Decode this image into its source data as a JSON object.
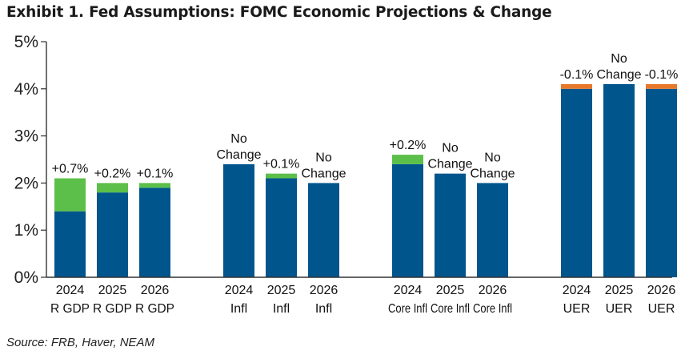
{
  "chart_data": {
    "type": "bar",
    "stacked": true,
    "title": "Exhibit 1. Fed Assumptions: FOMC Economic Projections & Change",
    "source": "Source: FRB, Haver, NEAM",
    "ylim": [
      0,
      5
    ],
    "yticks": [
      "0%",
      "1%",
      "2%",
      "3%",
      "4%",
      "5%"
    ],
    "colors": {
      "base": "#00558c",
      "increase": "#5cbf4a",
      "decrease": "#e8782a",
      "axis": "#333333"
    },
    "groups": [
      {
        "bars": [
          {
            "year": "2024",
            "label": "R GDP",
            "base": 1.4,
            "delta": 0.7,
            "change": "+0.7%"
          },
          {
            "year": "2025",
            "label": "R GDP",
            "base": 1.8,
            "delta": 0.2,
            "change": "+0.2%"
          },
          {
            "year": "2026",
            "label": "R GDP",
            "base": 1.9,
            "delta": 0.1,
            "change": "+0.1%"
          }
        ]
      },
      {
        "bars": [
          {
            "year": "2024",
            "label": "Infl",
            "base": 2.4,
            "delta": 0,
            "change": "No Change"
          },
          {
            "year": "2025",
            "label": "Infl",
            "base": 2.1,
            "delta": 0.1,
            "change": "+0.1%"
          },
          {
            "year": "2026",
            "label": "Infl",
            "base": 2.0,
            "delta": 0,
            "change": "No Change"
          }
        ]
      },
      {
        "bars": [
          {
            "year": "2024",
            "label": "Core Infl",
            "base": 2.4,
            "delta": 0.2,
            "change": "+0.2%"
          },
          {
            "year": "2025",
            "label": "Core Infl",
            "base": 2.2,
            "delta": 0,
            "change": "No Change"
          },
          {
            "year": "2026",
            "label": "Core Infl",
            "base": 2.0,
            "delta": 0,
            "change": "No Change"
          }
        ]
      },
      {
        "bars": [
          {
            "year": "2024",
            "label": "UER",
            "base": 4.0,
            "delta": -0.1,
            "change": "-0.1%"
          },
          {
            "year": "2025",
            "label": "UER",
            "base": 4.1,
            "delta": 0,
            "change": "No Change"
          },
          {
            "year": "2026",
            "label": "UER",
            "base": 4.0,
            "delta": -0.1,
            "change": "-0.1%"
          }
        ]
      }
    ]
  }
}
